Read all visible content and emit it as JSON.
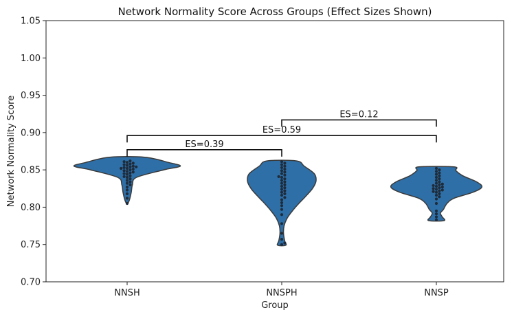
{
  "chart_data": {
    "type": "violin",
    "title": "Network Normality Score Across Groups (Effect Sizes Shown)",
    "xlabel": "Group",
    "ylabel": "Network Normality Score",
    "ylim": [
      0.7,
      1.05
    ],
    "yticks": [
      0.7,
      0.75,
      0.8,
      0.85,
      0.9,
      0.95,
      1.0,
      1.05
    ],
    "ytick_labels": [
      "0.70",
      "0.75",
      "0.80",
      "0.85",
      "0.90",
      "0.95",
      "1.00",
      "1.05"
    ],
    "categories": [
      "NNSH",
      "NNSPH",
      "NNSP"
    ],
    "violin_color": "#2e6fa7",
    "edge_color": "#3b3b3b",
    "point_color": "#1e2b3a",
    "grid": false,
    "groups": [
      {
        "name": "NNSH",
        "min": 0.805,
        "max": 0.867,
        "profile": [
          [
            0.805,
            0.01
          ],
          [
            0.81,
            0.04
          ],
          [
            0.82,
            0.07
          ],
          [
            0.83,
            0.09
          ],
          [
            0.84,
            0.16
          ],
          [
            0.85,
            0.62
          ],
          [
            0.855,
            0.9
          ],
          [
            0.86,
            0.7
          ],
          [
            0.867,
            0.3
          ]
        ],
        "points": [
          0.805,
          0.812,
          0.818,
          0.823,
          0.827,
          0.83,
          0.832,
          0.834,
          0.836,
          0.838,
          0.84,
          0.841,
          0.842,
          0.844,
          0.845,
          0.846,
          0.847,
          0.848,
          0.849,
          0.85,
          0.851,
          0.852,
          0.852,
          0.853,
          0.854,
          0.854,
          0.855,
          0.856,
          0.857,
          0.858,
          0.859,
          0.86,
          0.861,
          0.862
        ]
      },
      {
        "name": "NNSPH",
        "min": 0.749,
        "max": 0.862,
        "profile": [
          [
            0.749,
            0.07
          ],
          [
            0.755,
            0.05
          ],
          [
            0.765,
            0.03
          ],
          [
            0.775,
            0.04
          ],
          [
            0.785,
            0.09
          ],
          [
            0.795,
            0.18
          ],
          [
            0.805,
            0.29
          ],
          [
            0.815,
            0.41
          ],
          [
            0.825,
            0.52
          ],
          [
            0.835,
            0.58
          ],
          [
            0.845,
            0.55
          ],
          [
            0.855,
            0.38
          ],
          [
            0.862,
            0.25
          ]
        ],
        "points": [
          0.75,
          0.752,
          0.757,
          0.765,
          0.778,
          0.79,
          0.797,
          0.802,
          0.806,
          0.81,
          0.813,
          0.816,
          0.818,
          0.82,
          0.822,
          0.824,
          0.826,
          0.828,
          0.83,
          0.832,
          0.834,
          0.836,
          0.838,
          0.84,
          0.841,
          0.843,
          0.845,
          0.847,
          0.849,
          0.851,
          0.853,
          0.855,
          0.857,
          0.859,
          0.861
        ]
      },
      {
        "name": "NNSP",
        "min": 0.782,
        "max": 0.854,
        "profile": [
          [
            0.782,
            0.13
          ],
          [
            0.787,
            0.1
          ],
          [
            0.792,
            0.07
          ],
          [
            0.797,
            0.12
          ],
          [
            0.805,
            0.18
          ],
          [
            0.812,
            0.3
          ],
          [
            0.82,
            0.62
          ],
          [
            0.827,
            0.77
          ],
          [
            0.834,
            0.68
          ],
          [
            0.842,
            0.45
          ],
          [
            0.849,
            0.33
          ],
          [
            0.854,
            0.3
          ]
        ],
        "points": [
          0.783,
          0.787,
          0.791,
          0.795,
          0.805,
          0.811,
          0.814,
          0.816,
          0.818,
          0.82,
          0.821,
          0.822,
          0.823,
          0.824,
          0.825,
          0.826,
          0.827,
          0.828,
          0.829,
          0.83,
          0.831,
          0.832,
          0.834,
          0.836,
          0.838,
          0.84,
          0.842,
          0.844,
          0.846,
          0.848,
          0.85,
          0.852
        ]
      }
    ],
    "annotations": [
      {
        "from": "NNSH",
        "to": "NNSPH",
        "y": 0.877,
        "label": "ES=0.39"
      },
      {
        "from": "NNSH",
        "to": "NNSP",
        "y": 0.896,
        "label": "ES=0.59"
      },
      {
        "from": "NNSPH",
        "to": "NNSP",
        "y": 0.917,
        "label": "ES=0.12"
      }
    ]
  }
}
